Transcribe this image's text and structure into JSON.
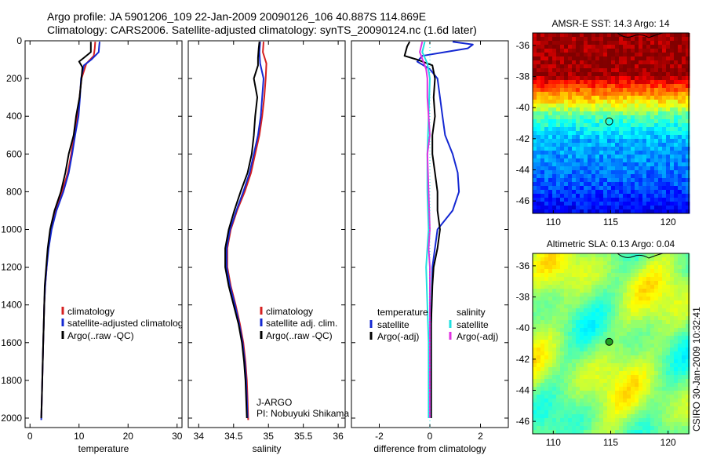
{
  "header": {
    "line1": "Argo profile: JA 5901206_109 22-Jan-2009 20090126_106 40.887S 114.869E",
    "line2": "Climatology: CARS2006. Satellite-adjusted climatology: synTS_20090124.nc (1.6d later)"
  },
  "side_label": "CSIRO 30-Jan-2009 10:32:41",
  "colors": {
    "red": "#d62020",
    "blue": "#1428d2",
    "black": "#000000",
    "cyan": "#20e0e0",
    "magenta": "#e030e0"
  },
  "chart_data": [
    {
      "type": "line",
      "xlabel": "temperature",
      "xlim": [
        -1,
        31
      ],
      "xticks": [
        0,
        10,
        20,
        30
      ],
      "ylim": [
        0,
        2050
      ],
      "yticks": [
        0,
        200,
        400,
        600,
        800,
        1000,
        1200,
        1400,
        1600,
        1800,
        2000
      ],
      "legend": [
        "climatology",
        "satellite-adjusted climatolog",
        "Argo(..raw -QC)"
      ],
      "series": [
        {
          "name": "climatology",
          "color": "red",
          "points": [
            [
              13.3,
              5
            ],
            [
              13.2,
              40
            ],
            [
              13.0,
              80
            ],
            [
              11.5,
              120
            ],
            [
              10.5,
              200
            ],
            [
              10.1,
              300
            ],
            [
              9.6,
              400
            ],
            [
              9.0,
              500
            ],
            [
              8.4,
              600
            ],
            [
              7.7,
              700
            ],
            [
              6.5,
              800
            ],
            [
              5.2,
              900
            ],
            [
              4.3,
              1000
            ],
            [
              3.7,
              1100
            ],
            [
              3.4,
              1200
            ],
            [
              3.1,
              1300
            ],
            [
              2.9,
              1400
            ],
            [
              2.8,
              1500
            ],
            [
              2.7,
              1600
            ],
            [
              2.6,
              1700
            ],
            [
              2.5,
              1800
            ],
            [
              2.4,
              1900
            ],
            [
              2.3,
              2000
            ]
          ]
        },
        {
          "name": "satellite-adjusted climatolog",
          "color": "blue",
          "points": [
            [
              14.2,
              5
            ],
            [
              14.1,
              30
            ],
            [
              14.0,
              60
            ],
            [
              12.5,
              100
            ],
            [
              11.0,
              130
            ],
            [
              10.4,
              200
            ],
            [
              10.2,
              300
            ],
            [
              9.9,
              400
            ],
            [
              9.2,
              500
            ],
            [
              8.6,
              600
            ],
            [
              7.9,
              700
            ],
            [
              6.8,
              800
            ],
            [
              5.4,
              900
            ],
            [
              4.4,
              1000
            ],
            [
              3.8,
              1100
            ],
            [
              3.4,
              1200
            ],
            [
              3.1,
              1300
            ],
            [
              2.9,
              1400
            ],
            [
              2.8,
              1500
            ],
            [
              2.7,
              1600
            ],
            [
              2.6,
              1700
            ],
            [
              2.5,
              1800
            ],
            [
              2.4,
              1900
            ],
            [
              2.3,
              2010
            ]
          ]
        },
        {
          "name": "Argo(..raw -QC)",
          "color": "black",
          "points": [
            [
              12.4,
              5
            ],
            [
              12.4,
              60
            ],
            [
              11.0,
              90
            ],
            [
              10.0,
              110
            ],
            [
              10.7,
              140
            ],
            [
              10.5,
              200
            ],
            [
              10.1,
              300
            ],
            [
              9.4,
              400
            ],
            [
              8.9,
              500
            ],
            [
              7.9,
              600
            ],
            [
              7.2,
              700
            ],
            [
              6.3,
              800
            ],
            [
              5.0,
              900
            ],
            [
              4.1,
              1000
            ],
            [
              3.6,
              1100
            ],
            [
              3.3,
              1200
            ],
            [
              3.0,
              1300
            ],
            [
              2.9,
              1400
            ],
            [
              2.8,
              1500
            ],
            [
              2.7,
              1600
            ],
            [
              2.6,
              1700
            ],
            [
              2.5,
              1800
            ],
            [
              2.4,
              1900
            ],
            [
              2.3,
              2000
            ]
          ]
        }
      ]
    },
    {
      "type": "line",
      "xlabel": "salinity",
      "xlim": [
        33.85,
        36.1
      ],
      "xticks": [
        34,
        34.5,
        35,
        35.5,
        36
      ],
      "xticklabels": [
        "34",
        "34.5",
        "35",
        "35.5",
        "36"
      ],
      "ylim": [
        0,
        2050
      ],
      "legend": [
        "climatology",
        "satellite adj. clim.",
        "Argo(..raw -QC)"
      ],
      "annotation": [
        "J-ARGO",
        "PI: Nobuyuki Shikama"
      ],
      "series": [
        {
          "name": "climatology",
          "color": "red",
          "points": [
            [
              34.93,
              5
            ],
            [
              34.92,
              60
            ],
            [
              34.97,
              120
            ],
            [
              34.96,
              200
            ],
            [
              34.94,
              300
            ],
            [
              34.91,
              400
            ],
            [
              34.87,
              500
            ],
            [
              34.81,
              600
            ],
            [
              34.75,
              700
            ],
            [
              34.66,
              800
            ],
            [
              34.55,
              900
            ],
            [
              34.46,
              1000
            ],
            [
              34.41,
              1100
            ],
            [
              34.41,
              1200
            ],
            [
              34.46,
              1300
            ],
            [
              34.53,
              1400
            ],
            [
              34.59,
              1500
            ],
            [
              34.64,
              1600
            ],
            [
              34.67,
              1700
            ],
            [
              34.69,
              1800
            ],
            [
              34.7,
              1900
            ],
            [
              34.71,
              2010
            ]
          ]
        },
        {
          "name": "satellite adj. clim.",
          "color": "blue",
          "points": [
            [
              34.88,
              5
            ],
            [
              34.87,
              60
            ],
            [
              34.88,
              120
            ],
            [
              34.93,
              200
            ],
            [
              34.91,
              300
            ],
            [
              34.89,
              400
            ],
            [
              34.85,
              500
            ],
            [
              34.79,
              600
            ],
            [
              34.73,
              700
            ],
            [
              34.64,
              800
            ],
            [
              34.54,
              900
            ],
            [
              34.45,
              1000
            ],
            [
              34.4,
              1100
            ],
            [
              34.4,
              1200
            ],
            [
              34.45,
              1300
            ],
            [
              34.52,
              1400
            ],
            [
              34.58,
              1500
            ],
            [
              34.63,
              1600
            ],
            [
              34.66,
              1700
            ],
            [
              34.68,
              1800
            ],
            [
              34.69,
              1900
            ],
            [
              34.7,
              2000
            ]
          ]
        },
        {
          "name": "Argo(..raw -QC)",
          "color": "black",
          "points": [
            [
              34.87,
              5
            ],
            [
              34.86,
              40
            ],
            [
              34.85,
              90
            ],
            [
              34.85,
              130
            ],
            [
              34.79,
              200
            ],
            [
              34.84,
              300
            ],
            [
              34.81,
              400
            ],
            [
              34.79,
              500
            ],
            [
              34.76,
              600
            ],
            [
              34.7,
              700
            ],
            [
              34.6,
              800
            ],
            [
              34.51,
              900
            ],
            [
              34.43,
              1000
            ],
            [
              34.38,
              1100
            ],
            [
              34.38,
              1200
            ],
            [
              34.43,
              1300
            ],
            [
              34.5,
              1400
            ],
            [
              34.57,
              1500
            ],
            [
              34.62,
              1600
            ],
            [
              34.65,
              1700
            ],
            [
              34.67,
              1800
            ],
            [
              34.68,
              1900
            ],
            [
              34.69,
              2000
            ]
          ]
        }
      ]
    },
    {
      "type": "line",
      "xlabel": "difference from climatology",
      "xlim": [
        -3.1,
        3.1
      ],
      "xticks": [
        -2,
        0,
        2
      ],
      "ylim": [
        0,
        2050
      ],
      "legend_headers": [
        "temperature",
        "salinity"
      ],
      "legend": [
        "satellite",
        "Argo(-adj)",
        "satellite",
        "Argo(-adj)"
      ],
      "series": [
        {
          "name": "satellite",
          "group": "temperature",
          "color": "blue",
          "points": [
            [
              0.9,
              5
            ],
            [
              1.7,
              20
            ],
            [
              1.5,
              40
            ],
            [
              0.6,
              60
            ],
            [
              -0.3,
              80
            ],
            [
              -0.5,
              110
            ],
            [
              0.0,
              150
            ],
            [
              0.3,
              200
            ],
            [
              0.4,
              300
            ],
            [
              0.5,
              400
            ],
            [
              0.6,
              500
            ],
            [
              0.9,
              600
            ],
            [
              1.1,
              700
            ],
            [
              1.15,
              800
            ],
            [
              0.9,
              900
            ],
            [
              0.3,
              1000
            ],
            [
              0.1,
              1200
            ],
            [
              0.05,
              1500
            ],
            [
              0.05,
              2000
            ]
          ]
        },
        {
          "name": "Argo(-adj)",
          "group": "temperature",
          "color": "black",
          "points": [
            [
              -0.8,
              5
            ],
            [
              -0.9,
              30
            ],
            [
              -1.0,
              80
            ],
            [
              -0.5,
              100
            ],
            [
              0.1,
              130
            ],
            [
              0.2,
              200
            ],
            [
              0.15,
              300
            ],
            [
              0.2,
              400
            ],
            [
              0.1,
              500
            ],
            [
              0.1,
              600
            ],
            [
              0.2,
              700
            ],
            [
              0.3,
              800
            ],
            [
              0.3,
              900
            ],
            [
              0.4,
              1000
            ],
            [
              0.3,
              1100
            ],
            [
              0.15,
              1200
            ],
            [
              0.1,
              1300
            ],
            [
              0.05,
              1500
            ],
            [
              0.05,
              2000
            ]
          ]
        },
        {
          "name": "satellite",
          "group": "salinity",
          "color": "cyan",
          "points": [
            [
              -0.2,
              5
            ],
            [
              -0.3,
              60
            ],
            [
              -0.1,
              120
            ],
            [
              0.0,
              200
            ],
            [
              -0.05,
              400
            ],
            [
              -0.1,
              600
            ],
            [
              -0.1,
              800
            ],
            [
              -0.05,
              1000
            ],
            [
              -0.15,
              1200
            ],
            [
              -0.1,
              1400
            ],
            [
              -0.05,
              1600
            ],
            [
              -0.05,
              1800
            ],
            [
              -0.05,
              2000
            ]
          ]
        },
        {
          "name": "Argo(-adj)",
          "group": "salinity",
          "color": "magenta",
          "points": [
            [
              -0.3,
              5
            ],
            [
              -0.4,
              60
            ],
            [
              -0.15,
              150
            ],
            [
              -0.1,
              200
            ],
            [
              -0.1,
              300
            ],
            [
              0.0,
              500
            ],
            [
              -0.1,
              600
            ],
            [
              -0.05,
              800
            ],
            [
              0.0,
              1000
            ],
            [
              -0.05,
              1100
            ],
            [
              0.0,
              1200
            ],
            [
              0.0,
              1500
            ],
            [
              0.0,
              2000
            ]
          ]
        }
      ]
    },
    {
      "type": "heatmap",
      "title": "AMSR-E SST: 14.3 Argo: 14",
      "xlim": [
        108.2,
        121.8
      ],
      "ylim": [
        -46.8,
        -35.2
      ],
      "xticks": [
        110,
        115,
        120
      ],
      "yticks": [
        -36,
        -38,
        -40,
        -42,
        -44,
        -46
      ],
      "colormap": "jet",
      "rows_lat": [
        -35.5,
        -36.5,
        -37.5,
        -38.5,
        -39.5,
        -40.5,
        -41.5,
        -42.5,
        -43.5,
        -44.5,
        -45.5,
        -46.5
      ],
      "rows_color": [
        "#9a0000",
        "#9a0000",
        "#9a0000",
        "#b81000",
        "#e06010",
        "#f0a820",
        "#c0e040",
        "#40d040",
        "#20b060",
        "#20a880",
        "#3090d0",
        "#2060d0"
      ],
      "marker": {
        "lon": 114.869,
        "lat": -40.887
      }
    },
    {
      "type": "heatmap",
      "title": "Altimetric SLA: 0.13 Argo: 0.04",
      "xlim": [
        108.2,
        121.8
      ],
      "ylim": [
        -46.8,
        -35.2
      ],
      "xticks": [
        110,
        115,
        120
      ],
      "yticks": [
        -36,
        -38,
        -40,
        -42,
        -44,
        -46
      ],
      "colormap": "jet",
      "marker": {
        "lon": 114.869,
        "lat": -40.887
      }
    }
  ]
}
